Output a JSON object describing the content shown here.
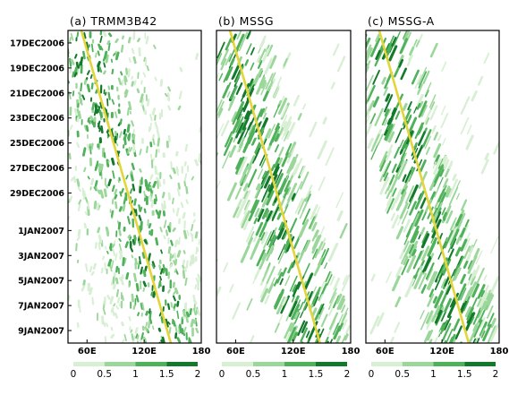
{
  "chart_data": [
    {
      "type": "heatmap",
      "panel": "a",
      "title": "(a) TRMM3B42",
      "xlabel": "",
      "ylabel": "",
      "x_ticks": [
        "60E",
        "120E",
        "180"
      ],
      "y_ticks": [
        "17DEC2006",
        "19DEC2006",
        "21DEC2006",
        "23DEC2006",
        "25DEC2006",
        "27DEC2006",
        "29DEC2006",
        "1JAN2007",
        "3JAN2007",
        "5JAN2007",
        "7JAN2007",
        "9JAN2007"
      ],
      "xlim": [
        "40E",
        "180"
      ],
      "ylim": [
        "16DEC2006",
        "10JAN2007"
      ],
      "colorbar": {
        "ticks": [
          "0",
          "0.5",
          "1",
          "1.5",
          "2"
        ],
        "range": [
          0,
          2
        ],
        "colors": [
          "#ffffff",
          "#d7efd3",
          "#9bd79a",
          "#4fb15a",
          "#137a2c"
        ]
      },
      "reference_line": {
        "color": "#e3d53a",
        "points": [
          {
            "x": 54,
            "y": "16DEC2006"
          },
          {
            "x": 148,
            "y": "10JAN2007"
          }
        ]
      },
      "grid": false
    },
    {
      "type": "heatmap",
      "panel": "b",
      "title": "(b) MSSG",
      "xlabel": "",
      "ylabel": "",
      "x_ticks": [
        "60E",
        "120E",
        "180"
      ],
      "y_ticks": [],
      "xlim": [
        "40E",
        "180"
      ],
      "ylim": [
        "16DEC2006",
        "10JAN2007"
      ],
      "colorbar": {
        "ticks": [
          "0",
          "0.5",
          "1",
          "1.5",
          "2"
        ],
        "range": [
          0,
          2
        ],
        "colors": [
          "#ffffff",
          "#d7efd3",
          "#9bd79a",
          "#4fb15a",
          "#137a2c"
        ]
      },
      "reference_line": {
        "color": "#e3d53a",
        "points": [
          {
            "x": 54,
            "y": "16DEC2006"
          },
          {
            "x": 148,
            "y": "10JAN2007"
          }
        ]
      },
      "grid": false
    },
    {
      "type": "heatmap",
      "panel": "c",
      "title": "(c) MSSG-A",
      "xlabel": "",
      "ylabel": "",
      "x_ticks": [
        "60E",
        "120E",
        "180"
      ],
      "y_ticks": [],
      "xlim": [
        "40E",
        "180"
      ],
      "ylim": [
        "16DEC2006",
        "10JAN2007"
      ],
      "colorbar": {
        "ticks": [
          "0",
          "0.5",
          "1",
          "1.5",
          "2"
        ],
        "range": [
          0,
          2
        ],
        "colors": [
          "#ffffff",
          "#d7efd3",
          "#9bd79a",
          "#4fb15a",
          "#137a2c"
        ]
      },
      "reference_line": {
        "color": "#e3d53a",
        "points": [
          {
            "x": 54,
            "y": "16DEC2006"
          },
          {
            "x": 148,
            "y": "10JAN2007"
          }
        ]
      },
      "grid": false
    }
  ]
}
